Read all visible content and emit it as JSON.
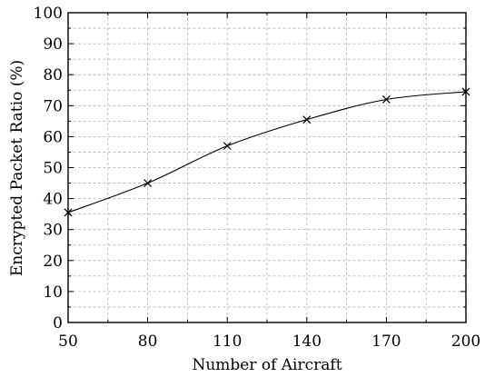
{
  "chart_data": {
    "type": "line",
    "title": "",
    "xlabel": "Number of Aircraft",
    "ylabel": "Encrypted Packet Ratio (%)",
    "x": [
      50,
      80,
      110,
      140,
      170,
      200
    ],
    "series": [
      {
        "values": [
          35.5,
          45,
          57,
          65.5,
          72,
          74.5
        ],
        "color": "#000000",
        "marker": "x"
      }
    ],
    "xlim": [
      50,
      200
    ],
    "ylim": [
      0,
      100
    ],
    "xticks": [
      50,
      80,
      110,
      140,
      170,
      200
    ],
    "yticks": [
      0,
      10,
      20,
      30,
      40,
      50,
      60,
      70,
      80,
      90,
      100
    ],
    "xtick_labels": [
      "50",
      "80",
      "110",
      "140",
      "170",
      "200"
    ],
    "ytick_labels": [
      "0",
      "10",
      "20",
      "30",
      "40",
      "50",
      "60",
      "70",
      "80",
      "90",
      "100"
    ],
    "grid": true,
    "grid_style": "dashed"
  }
}
